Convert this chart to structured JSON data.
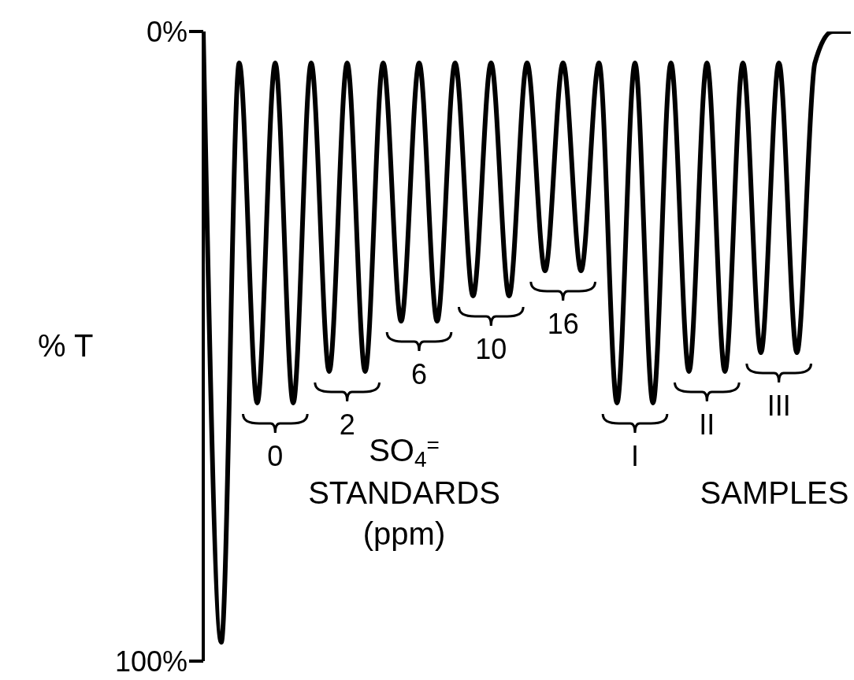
{
  "chart_data": {
    "type": "line",
    "ylabel": "% T",
    "categories": [
      null,
      null,
      null,
      null,
      null,
      null,
      null,
      null,
      null,
      null,
      null,
      null,
      null,
      null,
      null,
      null,
      null,
      null,
      null,
      null,
      null,
      null,
      null,
      null,
      null,
      null,
      null,
      null,
      null,
      null,
      null,
      null,
      null,
      null,
      null,
      null,
      null
    ],
    "series": [
      {
        "color": "#000000",
        "values": [
          0,
          97,
          5,
          59,
          5,
          59,
          5,
          54,
          5,
          54,
          5,
          46,
          5,
          46,
          5,
          42,
          5,
          42,
          5,
          38,
          5,
          38,
          5,
          59,
          5,
          59,
          5,
          54,
          5,
          54,
          5,
          51,
          5,
          51,
          5,
          0,
          0
        ]
      }
    ],
    "ylim": [
      100,
      0
    ],
    "yticks": [
      {
        "value": 0,
        "label": "0%"
      },
      {
        "value": 100,
        "label": "100%"
      }
    ],
    "tick_labels": "y",
    "grid": false,
    "legend": false,
    "marker": "none",
    "line_style": "solid",
    "annotations": [
      "0",
      "2",
      "6",
      "10",
      "16",
      "I",
      "II",
      "III",
      "SO$_{4}$$^{=}$",
      "STANDARDS",
      "(ppm)",
      "SAMPLES"
    ]
  }
}
